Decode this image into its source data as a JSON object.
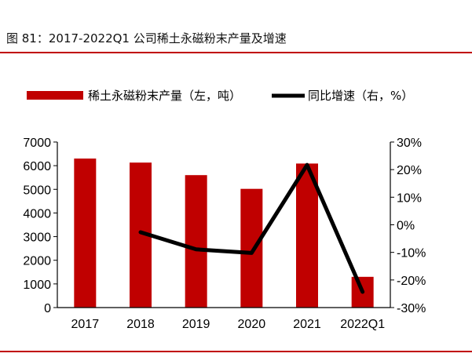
{
  "title": "图 81：2017-2022Q1 公司稀土永磁粉末产量及增速",
  "colors": {
    "bar": "#c00000",
    "line": "#000000",
    "rule": "#c00000"
  },
  "chart_data": {
    "type": "bar+line",
    "categories": [
      "2017",
      "2018",
      "2019",
      "2020",
      "2021",
      "2022Q1"
    ],
    "series": [
      {
        "name": "稀土永磁粉末产量（左，吨）",
        "type": "bar",
        "axis": "left",
        "values": [
          6300,
          6130,
          5600,
          5020,
          6090,
          1300
        ]
      },
      {
        "name": "同比增速（右，%）",
        "type": "line",
        "axis": "right",
        "values": [
          null,
          -2.7,
          -8.9,
          -10.2,
          21.7,
          -24.3
        ]
      }
    ],
    "y_left": {
      "min": 0,
      "max": 7000,
      "ticks": [
        "0",
        "1000",
        "2000",
        "3000",
        "4000",
        "5000",
        "6000",
        "7000"
      ]
    },
    "y_right": {
      "min": -30,
      "max": 30,
      "ticks": [
        "-30%",
        "-20%",
        "-10%",
        "0%",
        "10%",
        "20%",
        "30%"
      ]
    },
    "grid": false,
    "legend": "top"
  }
}
